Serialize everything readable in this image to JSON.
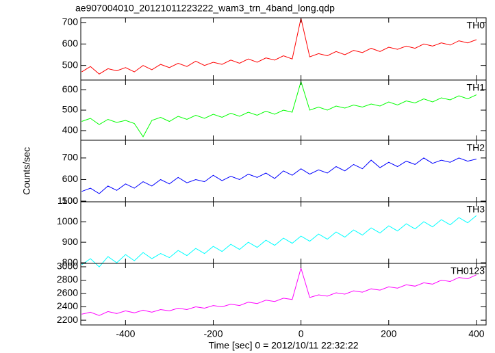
{
  "title": "ae907004010_20121011223222_wam3_trn_4band_long.qdp",
  "xlabel": "Time [sec] 0 = 2012/10/11 22:32:22",
  "ylabel": "Counts/sec",
  "chart_data": [
    {
      "type": "line",
      "xlim": [
        -502,
        422
      ],
      "ylim": [
        432,
        722
      ],
      "yticks": [
        500,
        600,
        700
      ],
      "x": [
        -500,
        -480,
        -460,
        -440,
        -420,
        -400,
        -380,
        -360,
        -340,
        -320,
        -300,
        -280,
        -260,
        -240,
        -220,
        -200,
        -180,
        -160,
        -140,
        -120,
        -100,
        -80,
        -60,
        -40,
        -20,
        0,
        20,
        40,
        60,
        80,
        100,
        120,
        140,
        160,
        180,
        200,
        220,
        240,
        260,
        280,
        300,
        320,
        340,
        360,
        380,
        400
      ],
      "series": [
        {
          "name": "TH0",
          "color": "#ff0000",
          "values": [
            470,
            495,
            460,
            485,
            475,
            490,
            470,
            500,
            480,
            505,
            490,
            510,
            495,
            520,
            500,
            515,
            505,
            525,
            510,
            530,
            515,
            535,
            525,
            545,
            530,
            720,
            540,
            555,
            545,
            565,
            550,
            570,
            560,
            580,
            565,
            585,
            575,
            590,
            580,
            600,
            590,
            605,
            595,
            615,
            605,
            620
          ]
        }
      ]
    },
    {
      "type": "line",
      "xlim": [
        -502,
        422
      ],
      "ylim": [
        353,
        647
      ],
      "yticks": [
        400,
        500,
        600
      ],
      "x": [
        -500,
        -480,
        -460,
        -440,
        -420,
        -400,
        -380,
        -360,
        -340,
        -320,
        -300,
        -280,
        -260,
        -240,
        -220,
        -200,
        -180,
        -160,
        -140,
        -120,
        -100,
        -80,
        -60,
        -40,
        -20,
        0,
        20,
        40,
        60,
        80,
        100,
        120,
        140,
        160,
        180,
        200,
        220,
        240,
        260,
        280,
        300,
        320,
        340,
        360,
        380,
        400
      ],
      "series": [
        {
          "name": "TH1",
          "color": "#00ff00",
          "values": [
            445,
            460,
            430,
            455,
            440,
            450,
            435,
            370,
            450,
            465,
            445,
            470,
            455,
            475,
            460,
            480,
            465,
            485,
            470,
            490,
            475,
            495,
            480,
            500,
            490,
            640,
            500,
            515,
            500,
            520,
            510,
            525,
            515,
            530,
            520,
            540,
            525,
            545,
            535,
            555,
            540,
            560,
            550,
            570,
            555,
            575
          ]
        }
      ]
    },
    {
      "type": "line",
      "xlim": [
        -502,
        422
      ],
      "ylim": [
        497,
        782
      ],
      "yticks": [
        500,
        600,
        700
      ],
      "x": [
        -500,
        -480,
        -460,
        -440,
        -420,
        -400,
        -380,
        -360,
        -340,
        -320,
        -300,
        -280,
        -260,
        -240,
        -220,
        -200,
        -180,
        -160,
        -140,
        -120,
        -100,
        -80,
        -60,
        -40,
        -20,
        0,
        20,
        40,
        60,
        80,
        100,
        120,
        140,
        160,
        180,
        200,
        220,
        240,
        260,
        280,
        300,
        320,
        340,
        360,
        380,
        400
      ],
      "series": [
        {
          "name": "TH2",
          "color": "#0000ff",
          "values": [
            545,
            560,
            535,
            570,
            550,
            580,
            560,
            590,
            570,
            600,
            580,
            610,
            585,
            600,
            590,
            620,
            595,
            615,
            600,
            625,
            610,
            630,
            605,
            640,
            620,
            650,
            625,
            645,
            630,
            660,
            640,
            670,
            650,
            690,
            655,
            680,
            660,
            685,
            670,
            700,
            675,
            690,
            680,
            700,
            685,
            695
          ]
        }
      ]
    },
    {
      "type": "line",
      "xlim": [
        -502,
        422
      ],
      "ylim": [
        797,
        1097
      ],
      "yticks": [
        800,
        900,
        1000,
        1100
      ],
      "x": [
        -500,
        -480,
        -460,
        -440,
        -420,
        -400,
        -380,
        -360,
        -340,
        -320,
        -300,
        -280,
        -260,
        -240,
        -220,
        -200,
        -180,
        -160,
        -140,
        -120,
        -100,
        -80,
        -60,
        -40,
        -20,
        0,
        20,
        40,
        60,
        80,
        100,
        120,
        140,
        160,
        180,
        200,
        220,
        240,
        260,
        280,
        300,
        320,
        340,
        360,
        380,
        400
      ],
      "series": [
        {
          "name": "TH3",
          "color": "#00ffff",
          "values": [
            790,
            820,
            780,
            830,
            800,
            840,
            810,
            850,
            820,
            845,
            825,
            860,
            835,
            870,
            845,
            880,
            855,
            890,
            865,
            900,
            875,
            910,
            885,
            920,
            895,
            930,
            905,
            940,
            915,
            950,
            925,
            960,
            935,
            970,
            945,
            980,
            955,
            990,
            965,
            1000,
            975,
            1010,
            985,
            1020,
            995,
            1030
          ]
        }
      ]
    },
    {
      "type": "line",
      "xlim": [
        -502,
        422
      ],
      "ylim": [
        2129,
        3051
      ],
      "yticks": [
        2200,
        2400,
        2600,
        2800,
        3000
      ],
      "xticks": [
        -400,
        -200,
        0,
        200,
        400
      ],
      "x": [
        -500,
        -480,
        -460,
        -440,
        -420,
        -400,
        -380,
        -360,
        -340,
        -320,
        -300,
        -280,
        -260,
        -240,
        -220,
        -200,
        -180,
        -160,
        -140,
        -120,
        -100,
        -80,
        -60,
        -40,
        -20,
        0,
        20,
        40,
        60,
        80,
        100,
        120,
        140,
        160,
        180,
        200,
        220,
        240,
        260,
        280,
        300,
        320,
        340,
        360,
        380,
        400
      ],
      "series": [
        {
          "name": "TH0123",
          "color": "#ff00ff",
          "values": [
            2290,
            2320,
            2270,
            2330,
            2300,
            2340,
            2310,
            2350,
            2320,
            2360,
            2340,
            2380,
            2360,
            2400,
            2380,
            2420,
            2400,
            2440,
            2420,
            2470,
            2450,
            2500,
            2480,
            2530,
            2510,
            2980,
            2540,
            2580,
            2560,
            2610,
            2590,
            2640,
            2620,
            2670,
            2650,
            2700,
            2680,
            2730,
            2710,
            2760,
            2740,
            2800,
            2780,
            2840,
            2820,
            2880
          ]
        }
      ]
    }
  ]
}
